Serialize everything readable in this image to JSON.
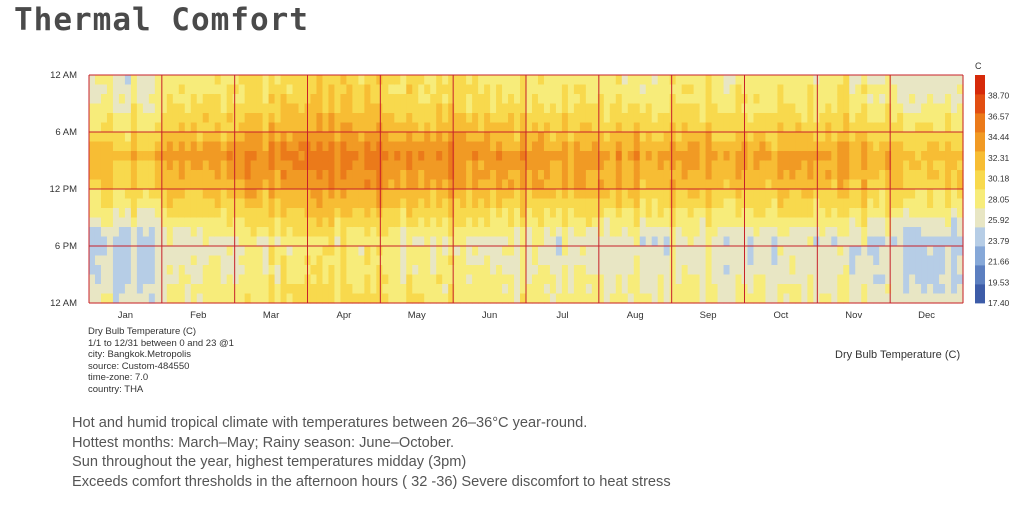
{
  "page": {
    "title": "Thermal Comfort"
  },
  "chart_data": {
    "type": "heatmap",
    "title": "Dry Bulb Temperature (C)",
    "series_name": "Dry Bulb Temperature (C)",
    "x_tick_labels": [
      "Jan",
      "Feb",
      "Mar",
      "Apr",
      "May",
      "Jun",
      "Jul",
      "Aug",
      "Sep",
      "Oct",
      "Nov",
      "Dec"
    ],
    "y_tick_labels": [
      "12 AM",
      "6 AM",
      "12 PM",
      "6 PM",
      "12 AM"
    ],
    "x_range": [
      "1/1",
      "12/31"
    ],
    "y_range_hours": [
      0,
      23
    ],
    "colorbar": {
      "unit": "C",
      "ticks": [
        38.7,
        36.57,
        34.44,
        32.31,
        30.18,
        28.05,
        25.92,
        23.79,
        21.66,
        19.53,
        17.4
      ],
      "min": 17.4,
      "max": 40.83,
      "colors": [
        "#3d5ca8",
        "#5c7fc0",
        "#86a8d8",
        "#b6cde6",
        "#e8e6c4",
        "#f7ec7a",
        "#f8d94d",
        "#f7bd34",
        "#f19a24",
        "#eb7a1a",
        "#e24e12",
        "#d62a0a"
      ]
    },
    "typical_temperature_profile": [
      {
        "hour": 0,
        "temp": 28
      },
      {
        "hour": 3,
        "temp": 27
      },
      {
        "hour": 6,
        "temp": 26.5
      },
      {
        "hour": 9,
        "temp": 29.5
      },
      {
        "hour": 12,
        "temp": 32.5
      },
      {
        "hour": 15,
        "temp": 34
      },
      {
        "hour": 18,
        "temp": 31
      },
      {
        "hour": 21,
        "temp": 29
      },
      {
        "hour": 23,
        "temp": 28.5
      }
    ],
    "monthly_offset": {
      "Jan": -1.8,
      "Feb": 0.2,
      "Mar": 1.0,
      "Apr": 1.8,
      "May": 0.8,
      "Jun": 0.2,
      "Jul": -0.1,
      "Aug": -0.2,
      "Sep": -0.4,
      "Oct": -0.6,
      "Nov": -0.8,
      "Dec": -2.0
    },
    "grid": true,
    "grid_color": "#c8202a"
  },
  "metadata": {
    "lines": [
      "Dry Bulb Temperature (C)",
      "1/1 to 12/31 between 0 and 23 @1",
      "city: Bangkok.Metropolis",
      "source: Custom-484550",
      "time-zone: 7.0",
      "country: THA"
    ]
  },
  "notes": [
    "Hot and humid tropical climate with temperatures between 26–36°C year-round.",
    "Hottest months: March–May; Rainy season: June–October.",
    "Sun throughout the year, highest temperatures midday (3pm)",
    "Exceeds comfort thresholds in the afternoon hours ( 32 -36) Severe discomfort to heat stress"
  ]
}
